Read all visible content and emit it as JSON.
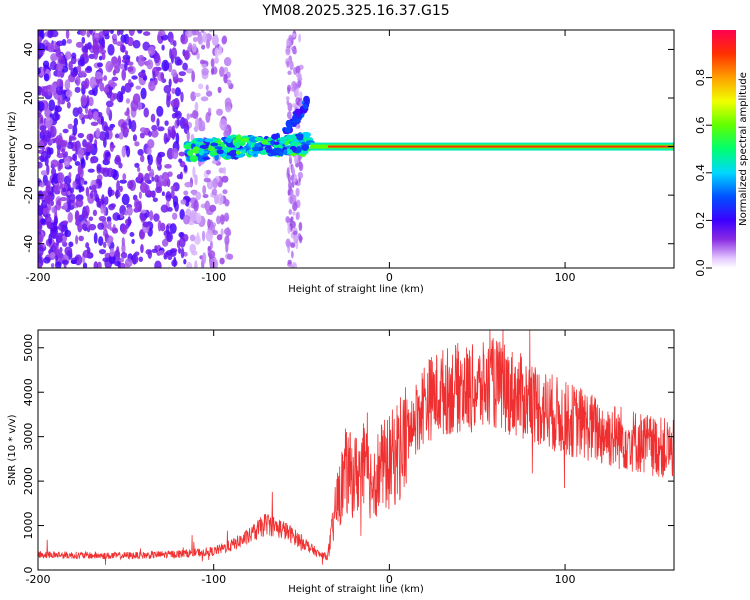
{
  "title": "YM08.2025.325.16.37.G15",
  "chart_data": [
    {
      "type": "heatmap",
      "xlabel": "Height of straight line (km)",
      "ylabel": "Frequency (Hz)",
      "xlim": [
        -200,
        162
      ],
      "ylim": [
        -50,
        48
      ],
      "x_ticks": [
        "-200",
        "-100",
        "0",
        "100"
      ],
      "y_ticks": [
        "-40",
        "-20",
        "0",
        "20",
        "40"
      ],
      "colorbar": {
        "label": "Normalized spectral amplitude",
        "range": [
          0.0,
          1.0
        ],
        "ticks": [
          "0.0",
          "0.2",
          "0.4",
          "0.6",
          "0.8"
        ]
      },
      "features": [
        {
          "name": "strong carrier line",
          "x_range": [
            -45,
            162
          ],
          "frequency_hz": 0,
          "amplitude": 0.9
        },
        {
          "name": "noisy carrier",
          "x_range": [
            -115,
            -45
          ],
          "frequency_hz": 0,
          "amplitude": 0.45
        },
        {
          "name": "diagonal branch",
          "x_range": [
            -60,
            -45
          ],
          "frequency_hz_range": [
            5,
            20
          ],
          "amplitude": 0.3
        },
        {
          "name": "background noise",
          "x_range": [
            -200,
            -115
          ],
          "frequency_hz_range": [
            -50,
            48
          ],
          "amplitude": 0.08
        }
      ]
    },
    {
      "type": "line",
      "xlabel": "Height of straight line (km)",
      "ylabel": "SNR (10 * v/v)",
      "xlim": [
        -200,
        162
      ],
      "ylim": [
        0,
        5400
      ],
      "x_ticks": [
        "-200",
        "-100",
        "0",
        "100"
      ],
      "y_ticks": [
        "0",
        "1000",
        "2000",
        "3000",
        "4000",
        "5000"
      ],
      "series": [
        {
          "name": "SNR",
          "color": "#f03030",
          "x": [
            -200,
            -180,
            -160,
            -140,
            -120,
            -100,
            -90,
            -80,
            -70,
            -60,
            -50,
            -40,
            -35,
            -30,
            -25,
            -20,
            -15,
            -10,
            -5,
            0,
            5,
            10,
            20,
            30,
            40,
            50,
            60,
            70,
            80,
            90,
            100,
            110,
            120,
            130,
            140,
            150,
            162
          ],
          "values": [
            350,
            330,
            320,
            330,
            360,
            420,
            550,
            750,
            1050,
            900,
            650,
            350,
            300,
            1500,
            2200,
            2100,
            2300,
            2000,
            2300,
            2400,
            2700,
            3000,
            3800,
            4000,
            4100,
            4050,
            4200,
            4000,
            3800,
            3600,
            3400,
            3300,
            3100,
            3000,
            2900,
            2800,
            2700
          ]
        }
      ]
    }
  ]
}
